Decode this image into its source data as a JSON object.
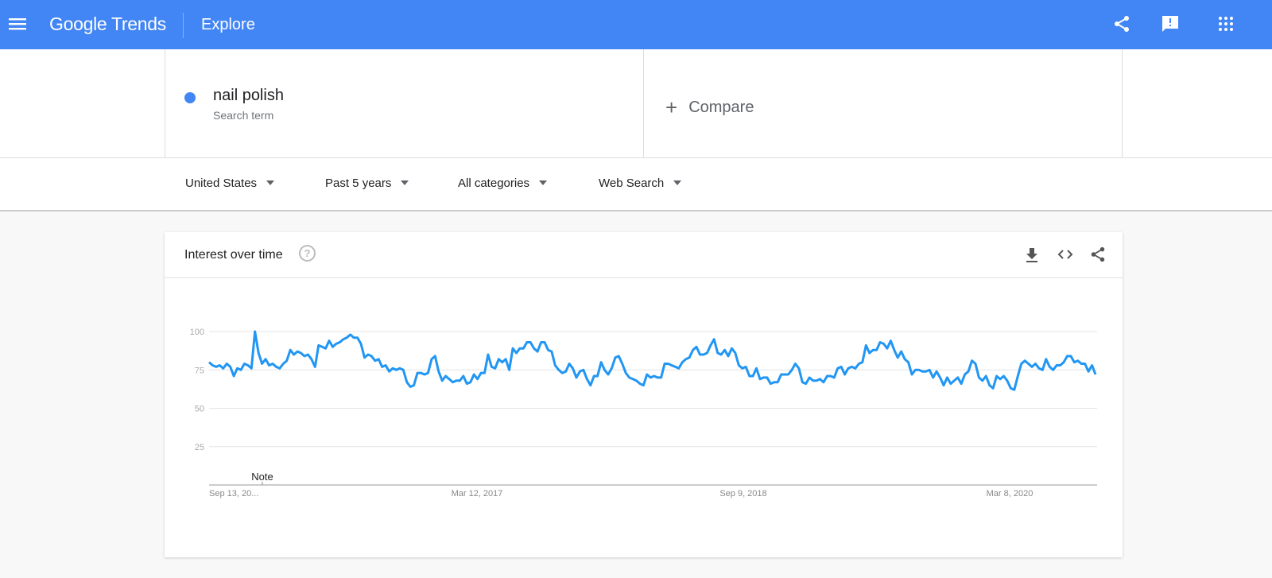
{
  "header": {
    "logo": "Google Trends",
    "title": "Explore",
    "icons": [
      "menu-icon",
      "share-icon",
      "feedback-icon",
      "apps-icon"
    ],
    "color": "#4285f4"
  },
  "search": {
    "term": "nail polish",
    "term_type": "Search term",
    "term_color": "#4285f4",
    "compare_label": "Compare"
  },
  "filters": [
    {
      "label": "United States"
    },
    {
      "label": "Past 5 years"
    },
    {
      "label": "All categories"
    },
    {
      "label": "Web Search"
    }
  ],
  "card": {
    "title": "Interest over time",
    "icons": [
      "help-icon",
      "download-icon",
      "embed-icon",
      "share-icon"
    ],
    "note_label": "Note"
  },
  "chart_data": {
    "type": "line",
    "title": "Interest over time",
    "ylim": [
      0,
      100
    ],
    "yticks": [
      "25",
      "50",
      "75",
      "100"
    ],
    "xticks": [
      "Sep 13, 20...",
      "Mar 12, 2017",
      "Sep 9, 2018",
      "Mar 8, 2020"
    ],
    "grid": true,
    "color": "#2196f3",
    "series": [
      {
        "name": "nail polish",
        "values": [
          80,
          78,
          77,
          78,
          76,
          79,
          77,
          71,
          76,
          75,
          79,
          78,
          76,
          100,
          86,
          79,
          82,
          78,
          79,
          77,
          76,
          79,
          81,
          88,
          85,
          87,
          86,
          84,
          85,
          82,
          77,
          91,
          90,
          89,
          94,
          90,
          92,
          93,
          95,
          96,
          98,
          96,
          96,
          92,
          83,
          85,
          84,
          81,
          82,
          77,
          78,
          74,
          76,
          75,
          76,
          75,
          67,
          64,
          65,
          73,
          73,
          72,
          73,
          82,
          84,
          74,
          68,
          71,
          69,
          67,
          68,
          68,
          71,
          66,
          67,
          72,
          69,
          73,
          73,
          85,
          77,
          76,
          82,
          80,
          82,
          75,
          89,
          86,
          89,
          89,
          93,
          93,
          89,
          87,
          93,
          93,
          88,
          87,
          78,
          75,
          73,
          74,
          79,
          76,
          70,
          74,
          75,
          69,
          65,
          71,
          71,
          80,
          75,
          72,
          76,
          83,
          84,
          79,
          73,
          70,
          69,
          68,
          66,
          65,
          72,
          70,
          71,
          70,
          70,
          79,
          79,
          78,
          77,
          76,
          80,
          82,
          83,
          88,
          90,
          85,
          85,
          86,
          91,
          95,
          86,
          85,
          88,
          84,
          89,
          86,
          78,
          76,
          77,
          71,
          71,
          76,
          69,
          70,
          70,
          66,
          67,
          67,
          72,
          72,
          72,
          75,
          79,
          76,
          67,
          66,
          70,
          68,
          68,
          69,
          67,
          71,
          71,
          70,
          76,
          77,
          72,
          76,
          77,
          76,
          79,
          80,
          91,
          86,
          88,
          88,
          93,
          92,
          89,
          94,
          88,
          83,
          87,
          82,
          80,
          72,
          75,
          75,
          74,
          74,
          75,
          70,
          74,
          70,
          65,
          70,
          66,
          68,
          70,
          66,
          72,
          74,
          81,
          79,
          70,
          68,
          71,
          65,
          63,
          71,
          69,
          71,
          68,
          63,
          62,
          71,
          79,
          81,
          79,
          77,
          79,
          76,
          75,
          82,
          77,
          75,
          78,
          78,
          80,
          84,
          84,
          80,
          81,
          79,
          79,
          74,
          78,
          72
        ]
      }
    ]
  }
}
